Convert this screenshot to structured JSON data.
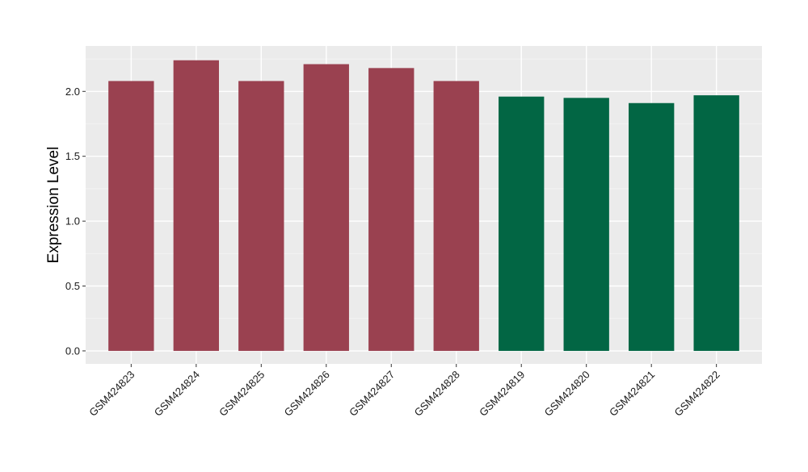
{
  "chart_data": {
    "type": "bar",
    "title": "",
    "xlabel": "",
    "ylabel": "Expression Level",
    "categories": [
      "GSM424823",
      "GSM424824",
      "GSM424825",
      "GSM424826",
      "GSM424827",
      "GSM424828",
      "GSM424819",
      "GSM424820",
      "GSM424821",
      "GSM424822"
    ],
    "values": [
      2.08,
      2.24,
      2.08,
      2.21,
      2.18,
      2.08,
      1.96,
      1.95,
      1.91,
      1.97
    ],
    "bar_colors": [
      "#9a4150",
      "#9a4150",
      "#9a4150",
      "#9a4150",
      "#9a4150",
      "#9a4150",
      "#026644",
      "#026644",
      "#026644",
      "#026644"
    ],
    "ylim": [
      -0.1,
      2.35
    ],
    "yticks": [
      0.0,
      0.5,
      1.0,
      1.5,
      2.0
    ],
    "ytick_labels": [
      "0.0",
      "0.5",
      "1.0",
      "1.5",
      "2.0"
    ],
    "grid": true,
    "legend": "none",
    "colors": {
      "panel_background": "#ebebeb",
      "grid_major": "#ffffff",
      "grid_minor": "#f5f5f5",
      "text": "#000000",
      "tick_text": "#1a1a1a"
    }
  }
}
